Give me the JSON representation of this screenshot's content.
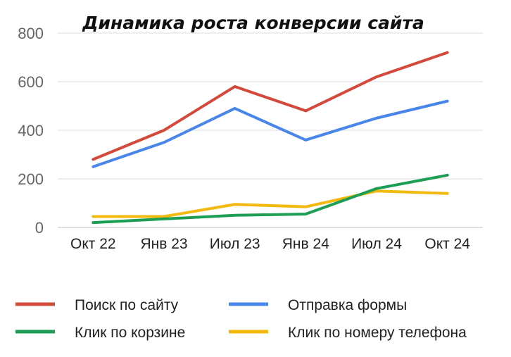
{
  "chart_data": {
    "type": "line",
    "title": "Динамика роста конверсии сайта",
    "xlabel": "",
    "ylabel": "",
    "categories": [
      "Окт 22",
      "Янв 23",
      "Июл 23",
      "Янв 24",
      "Июл 24",
      "Окт 24"
    ],
    "ylim": [
      0,
      800
    ],
    "yticks": [
      "0",
      "200",
      "400",
      "600",
      "800"
    ],
    "grid": true,
    "legend_position": "bottom",
    "series": [
      {
        "name": "Поиск по сайту",
        "color": "#d24a3c",
        "values": [
          280,
          400,
          580,
          480,
          620,
          720
        ]
      },
      {
        "name": "Отправка формы",
        "color": "#4a86e8",
        "values": [
          250,
          350,
          490,
          360,
          450,
          520
        ]
      },
      {
        "name": "Клик по корзине",
        "color": "#1e9e55",
        "values": [
          20,
          35,
          50,
          55,
          160,
          215
        ]
      },
      {
        "name": "Клик по номеру телефона",
        "color": "#f2b90f",
        "values": [
          45,
          45,
          95,
          85,
          150,
          140
        ]
      }
    ]
  }
}
